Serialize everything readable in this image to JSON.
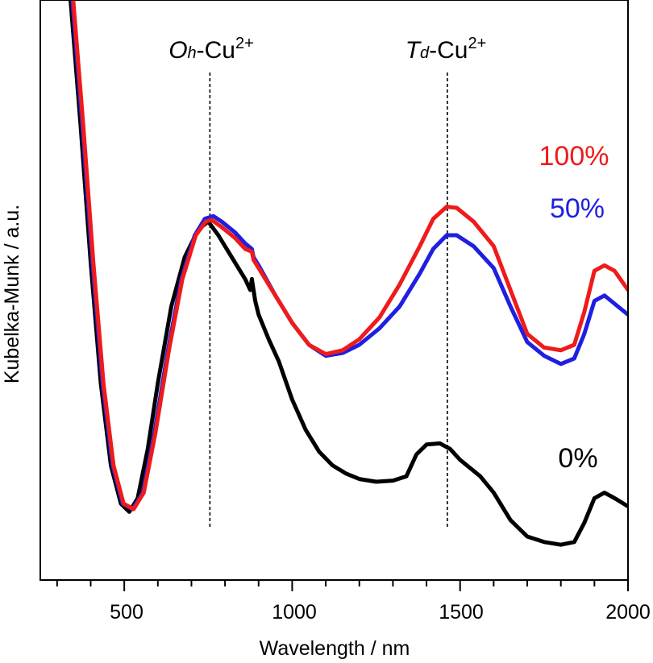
{
  "chart_data": {
    "type": "line",
    "title": "",
    "xlabel": "Wavelength / nm",
    "ylabel": "Kubelka-Munk / a.u.",
    "xlim": [
      250,
      2000
    ],
    "ylim": [
      0,
      1
    ],
    "x_ticks": [
      500,
      1000,
      1500,
      2000
    ],
    "x_tick_labels": [
      "500",
      "1000",
      "1500",
      "2000"
    ],
    "y_ticks_shown": false,
    "reference_lines": [
      {
        "x": 755,
        "base": "O",
        "subscript": "h",
        "suffix": "-Cu",
        "superscript": "2+"
      },
      {
        "x": 1462,
        "base": "T",
        "subscript": "d",
        "suffix": "-Cu",
        "superscript": "2+"
      }
    ],
    "series": [
      {
        "name": "0%",
        "color": "#000000",
        "points": [
          [
            340,
            1.03
          ],
          [
            370,
            0.8
          ],
          [
            400,
            0.55
          ],
          [
            430,
            0.33
          ],
          [
            460,
            0.18
          ],
          [
            490,
            0.11
          ],
          [
            515,
            0.095
          ],
          [
            540,
            0.12
          ],
          [
            570,
            0.21
          ],
          [
            600,
            0.33
          ],
          [
            640,
            0.47
          ],
          [
            680,
            0.56
          ],
          [
            720,
            0.61
          ],
          [
            750,
            0.625
          ],
          [
            780,
            0.6
          ],
          [
            820,
            0.56
          ],
          [
            860,
            0.52
          ],
          [
            875,
            0.5
          ],
          [
            880,
            0.52
          ],
          [
            890,
            0.48
          ],
          [
            900,
            0.455
          ],
          [
            930,
            0.41
          ],
          [
            960,
            0.37
          ],
          [
            1000,
            0.3
          ],
          [
            1040,
            0.245
          ],
          [
            1080,
            0.205
          ],
          [
            1120,
            0.18
          ],
          [
            1160,
            0.165
          ],
          [
            1200,
            0.155
          ],
          [
            1250,
            0.15
          ],
          [
            1300,
            0.152
          ],
          [
            1340,
            0.16
          ],
          [
            1370,
            0.2
          ],
          [
            1400,
            0.218
          ],
          [
            1440,
            0.22
          ],
          [
            1470,
            0.21
          ],
          [
            1500,
            0.19
          ],
          [
            1560,
            0.16
          ],
          [
            1600,
            0.13
          ],
          [
            1650,
            0.08
          ],
          [
            1700,
            0.05
          ],
          [
            1750,
            0.04
          ],
          [
            1800,
            0.035
          ],
          [
            1840,
            0.04
          ],
          [
            1870,
            0.075
          ],
          [
            1900,
            0.12
          ],
          [
            1930,
            0.13
          ],
          [
            1960,
            0.12
          ],
          [
            2000,
            0.105
          ]
        ]
      },
      {
        "name": "50%",
        "color": "#1f1fe0",
        "points": [
          [
            345,
            1.03
          ],
          [
            375,
            0.8
          ],
          [
            405,
            0.55
          ],
          [
            435,
            0.33
          ],
          [
            465,
            0.18
          ],
          [
            495,
            0.11
          ],
          [
            525,
            0.1
          ],
          [
            555,
            0.13
          ],
          [
            590,
            0.24
          ],
          [
            630,
            0.39
          ],
          [
            670,
            0.52
          ],
          [
            710,
            0.6
          ],
          [
            740,
            0.63
          ],
          [
            765,
            0.635
          ],
          [
            790,
            0.625
          ],
          [
            830,
            0.605
          ],
          [
            860,
            0.585
          ],
          [
            880,
            0.575
          ],
          [
            885,
            0.56
          ],
          [
            900,
            0.545
          ],
          [
            950,
            0.49
          ],
          [
            1000,
            0.44
          ],
          [
            1050,
            0.4
          ],
          [
            1100,
            0.38
          ],
          [
            1150,
            0.385
          ],
          [
            1200,
            0.4
          ],
          [
            1260,
            0.43
          ],
          [
            1320,
            0.47
          ],
          [
            1380,
            0.53
          ],
          [
            1420,
            0.575
          ],
          [
            1460,
            0.6
          ],
          [
            1490,
            0.6
          ],
          [
            1540,
            0.58
          ],
          [
            1600,
            0.54
          ],
          [
            1650,
            0.47
          ],
          [
            1700,
            0.405
          ],
          [
            1750,
            0.38
          ],
          [
            1800,
            0.365
          ],
          [
            1840,
            0.375
          ],
          [
            1870,
            0.42
          ],
          [
            1900,
            0.48
          ],
          [
            1930,
            0.49
          ],
          [
            1960,
            0.475
          ],
          [
            2000,
            0.455
          ]
        ]
      },
      {
        "name": "100%",
        "color": "#ef1b1b",
        "points": [
          [
            348,
            1.03
          ],
          [
            378,
            0.8
          ],
          [
            408,
            0.55
          ],
          [
            438,
            0.33
          ],
          [
            468,
            0.18
          ],
          [
            498,
            0.11
          ],
          [
            528,
            0.1
          ],
          [
            558,
            0.13
          ],
          [
            593,
            0.24
          ],
          [
            633,
            0.39
          ],
          [
            673,
            0.52
          ],
          [
            713,
            0.6
          ],
          [
            743,
            0.625
          ],
          [
            760,
            0.628
          ],
          [
            790,
            0.615
          ],
          [
            830,
            0.595
          ],
          [
            860,
            0.575
          ],
          [
            880,
            0.57
          ],
          [
            885,
            0.555
          ],
          [
            900,
            0.54
          ],
          [
            950,
            0.49
          ],
          [
            1000,
            0.44
          ],
          [
            1050,
            0.4
          ],
          [
            1100,
            0.383
          ],
          [
            1150,
            0.39
          ],
          [
            1200,
            0.41
          ],
          [
            1260,
            0.45
          ],
          [
            1320,
            0.51
          ],
          [
            1380,
            0.58
          ],
          [
            1420,
            0.63
          ],
          [
            1460,
            0.652
          ],
          [
            1490,
            0.65
          ],
          [
            1540,
            0.625
          ],
          [
            1600,
            0.58
          ],
          [
            1650,
            0.5
          ],
          [
            1700,
            0.42
          ],
          [
            1750,
            0.395
          ],
          [
            1800,
            0.39
          ],
          [
            1840,
            0.4
          ],
          [
            1870,
            0.46
          ],
          [
            1900,
            0.535
          ],
          [
            1930,
            0.545
          ],
          [
            1960,
            0.535
          ],
          [
            2000,
            0.5
          ]
        ]
      }
    ],
    "series_labels": [
      "100%",
      "50%",
      "0%"
    ]
  }
}
